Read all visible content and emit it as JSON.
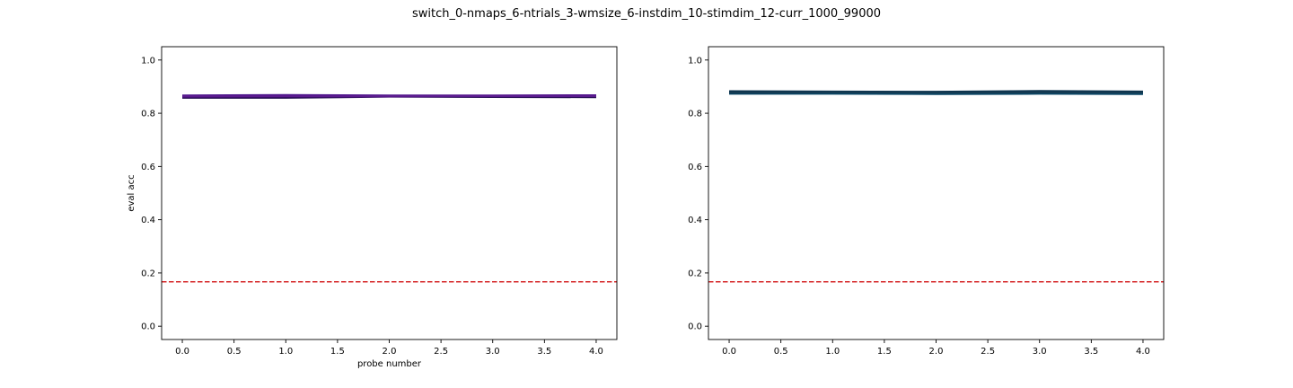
{
  "figure": {
    "suptitle": "switch_0-nmaps_6-ntrials_3-wmsize_6-instdim_10-stimdim_12-curr_1000_99000"
  },
  "chart_data": [
    {
      "type": "line",
      "title": "",
      "xlabel": "probe number",
      "ylabel": "eval acc",
      "xlim": [
        -0.2,
        4.2
      ],
      "ylim": [
        -0.05,
        1.05
      ],
      "xticks": [
        0.0,
        0.5,
        1.0,
        1.5,
        2.0,
        2.5,
        3.0,
        3.5,
        4.0
      ],
      "xtick_labels": [
        "0.0",
        "0.5",
        "1.0",
        "1.5",
        "2.0",
        "2.5",
        "3.0",
        "3.5",
        "4.0"
      ],
      "yticks": [
        0.0,
        0.2,
        0.4,
        0.6,
        0.8,
        1.0
      ],
      "ytick_labels": [
        "0.0",
        "0.2",
        "0.4",
        "0.6",
        "0.8",
        "1.0"
      ],
      "grid": false,
      "reference_line": {
        "y": 0.1667,
        "color": "#d62728",
        "style": "dashed"
      },
      "series": [
        {
          "color": "#3b0f70",
          "x": [
            0,
            1,
            2,
            3,
            4
          ],
          "values": [
            0.864,
            0.866,
            0.865,
            0.864,
            0.866
          ]
        },
        {
          "color": "#2a0a5e",
          "x": [
            0,
            1,
            2,
            3,
            4
          ],
          "values": [
            0.861,
            0.861,
            0.865,
            0.865,
            0.864
          ]
        },
        {
          "color": "#4a148c",
          "x": [
            0,
            1,
            2,
            3,
            4
          ],
          "values": [
            0.866,
            0.868,
            0.866,
            0.866,
            0.867
          ]
        },
        {
          "color": "#1a0548",
          "x": [
            0,
            1,
            2,
            3,
            4
          ],
          "values": [
            0.859,
            0.859,
            0.863,
            0.862,
            0.861
          ]
        },
        {
          "color": "#5b1a8e",
          "x": [
            0,
            1,
            2,
            3,
            4
          ],
          "values": [
            0.863,
            0.864,
            0.864,
            0.865,
            0.865
          ]
        }
      ]
    },
    {
      "type": "line",
      "title": "",
      "xlabel": "",
      "ylabel": "",
      "xlim": [
        -0.2,
        4.2
      ],
      "ylim": [
        -0.05,
        1.05
      ],
      "xticks": [
        0.0,
        0.5,
        1.0,
        1.5,
        2.0,
        2.5,
        3.0,
        3.5,
        4.0
      ],
      "xtick_labels": [
        "0.0",
        "0.5",
        "1.0",
        "1.5",
        "2.0",
        "2.5",
        "3.0",
        "3.5",
        "4.0"
      ],
      "yticks": [
        0.0,
        0.2,
        0.4,
        0.6,
        0.8,
        1.0
      ],
      "ytick_labels": [
        "0.0",
        "0.2",
        "0.4",
        "0.6",
        "0.8",
        "1.0"
      ],
      "grid": false,
      "reference_line": {
        "y": 0.1667,
        "color": "#d62728",
        "style": "dashed"
      },
      "series": [
        {
          "color": "#0b3c5d",
          "x": [
            0,
            1,
            2,
            3,
            4
          ],
          "values": [
            0.88,
            0.88,
            0.879,
            0.881,
            0.879
          ]
        },
        {
          "color": "#064060",
          "x": [
            0,
            1,
            2,
            3,
            4
          ],
          "values": [
            0.874,
            0.874,
            0.873,
            0.874,
            0.873
          ]
        },
        {
          "color": "#082f4a",
          "x": [
            0,
            1,
            2,
            3,
            4
          ],
          "values": [
            0.882,
            0.881,
            0.88,
            0.883,
            0.881
          ]
        },
        {
          "color": "#0d4f6e",
          "x": [
            0,
            1,
            2,
            3,
            4
          ],
          "values": [
            0.877,
            0.877,
            0.876,
            0.877,
            0.876
          ]
        },
        {
          "color": "#143a52",
          "x": [
            0,
            1,
            2,
            3,
            4
          ],
          "values": [
            0.878,
            0.879,
            0.878,
            0.879,
            0.878
          ]
        }
      ]
    }
  ]
}
